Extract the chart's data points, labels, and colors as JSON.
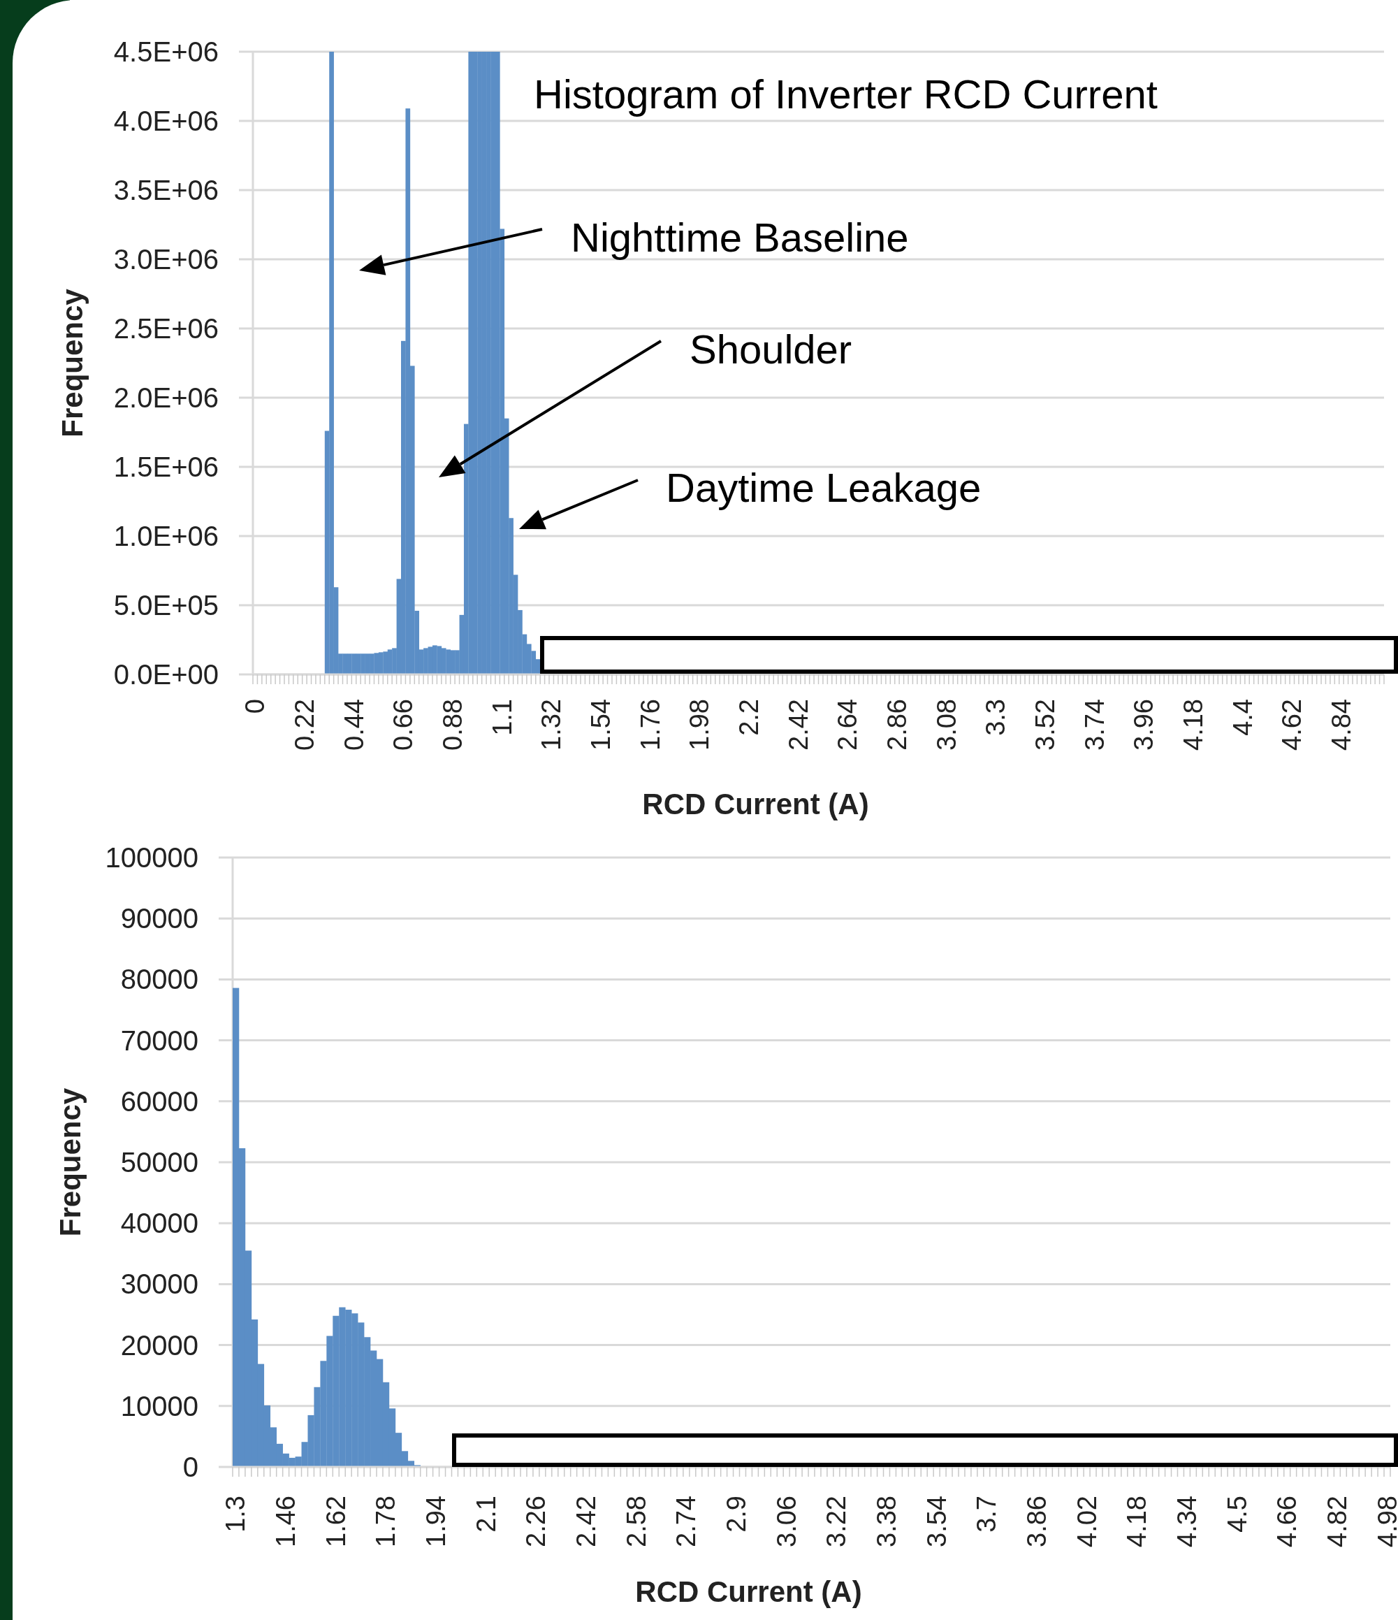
{
  "chart_data": [
    {
      "type": "bar",
      "title": "Histogram of Inverter RCD Current",
      "xlabel": "RCD Current (A)",
      "ylabel": "Frequency",
      "color": "#5b8ec6",
      "grid": "y",
      "annotations": [
        "Nighttime Baseline",
        "Shoulder",
        "Daytime Leakage"
      ],
      "ylim": [
        0,
        4500000
      ],
      "yticks": [
        {
          "value": 0,
          "label": "0.0E+00"
        },
        {
          "value": 500000,
          "label": "5.0E+05"
        },
        {
          "value": 1000000,
          "label": "1.0E+06"
        },
        {
          "value": 1500000,
          "label": "1.5E+06"
        },
        {
          "value": 2000000,
          "label": "2.0E+06"
        },
        {
          "value": 2500000,
          "label": "2.5E+06"
        },
        {
          "value": 3000000,
          "label": "3.0E+06"
        },
        {
          "value": 3500000,
          "label": "3.5E+06"
        },
        {
          "value": 4000000,
          "label": "4.0E+06"
        },
        {
          "value": 4500000,
          "label": "4.5E+06"
        }
      ],
      "categories": [
        "0",
        null,
        null,
        null,
        null,
        null,
        null,
        null,
        null,
        null,
        null,
        "0.22",
        null,
        null,
        null,
        null,
        null,
        null,
        null,
        null,
        null,
        null,
        "0.44",
        null,
        null,
        null,
        null,
        null,
        null,
        null,
        null,
        null,
        null,
        "0.66",
        null,
        null,
        null,
        null,
        null,
        null,
        null,
        null,
        null,
        null,
        "0.88",
        null,
        null,
        null,
        null,
        null,
        null,
        null,
        null,
        null,
        null,
        "1.1",
        null,
        null,
        null,
        null,
        null,
        null,
        null,
        null,
        null,
        null,
        "1.32",
        null,
        null,
        null,
        null,
        null,
        null,
        null,
        null,
        null,
        null,
        "1.54",
        null,
        null,
        null,
        null,
        null,
        null,
        null,
        null,
        null,
        null,
        "1.76",
        null,
        null,
        null,
        null,
        null,
        null,
        null,
        null,
        null,
        null,
        "1.98",
        null,
        null,
        null,
        null,
        null,
        null,
        null,
        null,
        null,
        null,
        "2.2",
        null,
        null,
        null,
        null,
        null,
        null,
        null,
        null,
        null,
        null,
        "2.42",
        null,
        null,
        null,
        null,
        null,
        null,
        null,
        null,
        null,
        null,
        "2.64",
        null,
        null,
        null,
        null,
        null,
        null,
        null,
        null,
        null,
        null,
        "2.86",
        null,
        null,
        null,
        null,
        null,
        null,
        null,
        null,
        null,
        null,
        "3.08",
        null,
        null,
        null,
        null,
        null,
        null,
        null,
        null,
        null,
        null,
        "3.3",
        null,
        null,
        null,
        null,
        null,
        null,
        null,
        null,
        null,
        null,
        "3.52",
        null,
        null,
        null,
        null,
        null,
        null,
        null,
        null,
        null,
        null,
        "3.74",
        null,
        null,
        null,
        null,
        null,
        null,
        null,
        null,
        null,
        null,
        "3.96",
        null,
        null,
        null,
        null,
        null,
        null,
        null,
        null,
        null,
        null,
        "4.18",
        null,
        null,
        null,
        null,
        null,
        null,
        null,
        null,
        null,
        null,
        "4.4",
        null,
        null,
        null,
        null,
        null,
        null,
        null,
        null,
        null,
        null,
        "4.62",
        null,
        null,
        null,
        null,
        null,
        null,
        null,
        null,
        null,
        null,
        "4.84",
        null,
        null,
        null,
        null,
        null,
        null,
        null,
        null,
        null
      ],
      "values": [
        0,
        0,
        0,
        0,
        0,
        0,
        0,
        0,
        0,
        0,
        0,
        0,
        0,
        0,
        0,
        0,
        1760000,
        4500000,
        630000,
        150000,
        150000,
        150000,
        150000,
        150000,
        150000,
        150000,
        150000,
        155000,
        160000,
        165000,
        180000,
        190000,
        690000,
        2410000,
        4090000,
        2230000,
        460000,
        180000,
        190000,
        200000,
        210000,
        205000,
        190000,
        180000,
        175000,
        175000,
        430000,
        1810000,
        4500000,
        4500000,
        4500000,
        4500000,
        4500000,
        4500000,
        4500000,
        3220000,
        1850000,
        1130000,
        720000,
        465000,
        290000,
        220000,
        170000,
        110000,
        null,
        null,
        null,
        null,
        null,
        null,
        null,
        null,
        null,
        null,
        null,
        null,
        null,
        null,
        null,
        null,
        null,
        null,
        null,
        null,
        null,
        null,
        null,
        null,
        null,
        null,
        null,
        null,
        null,
        null,
        null,
        null,
        null,
        null,
        null,
        null,
        null,
        null,
        null,
        null,
        null,
        null,
        null,
        null,
        null,
        null,
        null,
        null,
        null,
        null,
        null,
        null,
        null,
        null,
        null,
        null,
        null,
        null,
        null,
        null,
        null,
        null,
        null,
        null,
        null,
        null,
        null,
        null,
        null,
        null,
        null,
        null,
        null,
        null,
        null,
        null,
        null,
        null,
        null,
        null,
        null,
        null,
        null,
        null,
        null,
        null,
        null,
        null,
        null,
        null,
        null,
        null,
        null,
        null,
        null,
        null,
        null,
        null,
        null,
        null,
        null,
        null,
        null,
        null,
        null,
        null,
        null,
        null,
        null,
        null,
        null,
        null,
        null,
        null,
        null,
        null,
        null,
        null,
        null,
        null,
        null,
        null,
        null,
        null,
        null,
        null,
        null,
        null,
        null,
        null,
        null,
        null,
        null,
        null,
        null,
        null,
        null,
        null,
        null,
        null,
        null,
        null,
        null,
        null,
        null,
        null,
        null,
        null,
        null,
        null,
        null,
        null,
        null,
        null,
        null,
        null,
        null,
        null,
        null,
        null,
        null,
        null,
        null,
        null,
        null,
        null,
        null,
        null,
        null,
        null,
        null,
        null,
        null,
        null,
        null,
        null,
        null,
        null,
        null,
        null,
        null,
        null,
        null,
        null,
        null,
        null,
        null,
        null
      ]
    },
    {
      "type": "bar",
      "xlabel": "RCD Current (A)",
      "ylabel": "Frequency",
      "color": "#5b8ec6",
      "grid": "y",
      "ylim": [
        0,
        100000
      ],
      "yticks": [
        0,
        10000,
        20000,
        30000,
        40000,
        50000,
        60000,
        70000,
        80000,
        90000,
        100000
      ],
      "categories": [
        "1.3",
        null,
        null,
        null,
        null,
        null,
        null,
        null,
        "1.46",
        null,
        null,
        null,
        null,
        null,
        null,
        null,
        "1.62",
        null,
        null,
        null,
        null,
        null,
        null,
        null,
        "1.78",
        null,
        null,
        null,
        null,
        null,
        null,
        null,
        "1.94",
        null,
        null,
        null,
        null,
        null,
        null,
        null,
        "2.1",
        null,
        null,
        null,
        null,
        null,
        null,
        null,
        "2.26",
        null,
        null,
        null,
        null,
        null,
        null,
        null,
        "2.42",
        null,
        null,
        null,
        null,
        null,
        null,
        null,
        "2.58",
        null,
        null,
        null,
        null,
        null,
        null,
        null,
        "2.74",
        null,
        null,
        null,
        null,
        null,
        null,
        null,
        "2.9",
        null,
        null,
        null,
        null,
        null,
        null,
        null,
        "3.06",
        null,
        null,
        null,
        null,
        null,
        null,
        null,
        "3.22",
        null,
        null,
        null,
        null,
        null,
        null,
        null,
        "3.38",
        null,
        null,
        null,
        null,
        null,
        null,
        null,
        "3.54",
        null,
        null,
        null,
        null,
        null,
        null,
        null,
        "3.7",
        null,
        null,
        null,
        null,
        null,
        null,
        null,
        "3.86",
        null,
        null,
        null,
        null,
        null,
        null,
        null,
        "4.02",
        null,
        null,
        null,
        null,
        null,
        null,
        null,
        "4.18",
        null,
        null,
        null,
        null,
        null,
        null,
        null,
        "4.34",
        null,
        null,
        null,
        null,
        null,
        null,
        null,
        "4.5",
        null,
        null,
        null,
        null,
        null,
        null,
        null,
        "4.66",
        null,
        null,
        null,
        null,
        null,
        null,
        null,
        "4.82",
        null,
        null,
        null,
        null,
        null,
        null,
        null,
        "4.98"
      ],
      "values": [
        78600,
        52300,
        35500,
        24200,
        16900,
        10100,
        6500,
        3800,
        2200,
        1500,
        1700,
        4100,
        8500,
        13100,
        17400,
        21500,
        24800,
        26200,
        25800,
        25200,
        23700,
        21300,
        19100,
        17700,
        13900,
        9600,
        5600,
        2600,
        1000,
        300,
        0,
        0,
        0,
        0,
        0,
        null,
        null,
        null,
        null,
        null,
        null,
        null,
        null,
        null,
        null,
        null,
        null,
        null,
        null,
        null,
        null,
        null,
        null,
        null,
        null,
        null,
        null,
        null,
        null,
        null,
        null,
        null,
        null,
        null,
        null,
        null,
        null,
        null,
        null,
        null,
        null,
        null,
        null,
        null,
        null,
        null,
        null,
        null,
        null,
        null,
        null,
        null,
        null,
        null,
        null,
        null,
        null,
        null,
        null,
        null,
        null,
        null,
        null,
        null,
        null,
        null,
        null,
        null,
        null,
        null,
        null,
        null,
        null,
        null,
        null,
        null,
        null,
        null,
        null,
        null,
        null,
        null,
        null,
        null,
        null,
        null,
        null,
        null,
        null,
        null,
        null,
        null,
        null,
        null,
        null,
        null,
        null,
        null,
        null,
        null,
        null,
        null,
        null,
        null,
        null,
        null,
        null,
        null,
        null,
        null,
        null,
        null,
        null,
        null,
        null,
        null,
        null,
        null,
        null,
        null,
        null,
        null,
        null,
        null,
        null,
        null,
        null,
        null,
        null,
        null,
        null,
        null,
        null,
        null,
        null,
        null,
        null,
        null,
        null,
        null,
        null,
        null,
        null,
        null,
        null,
        null,
        null,
        null,
        null,
        null,
        null,
        null,
        null,
        null,
        null
      ]
    }
  ]
}
